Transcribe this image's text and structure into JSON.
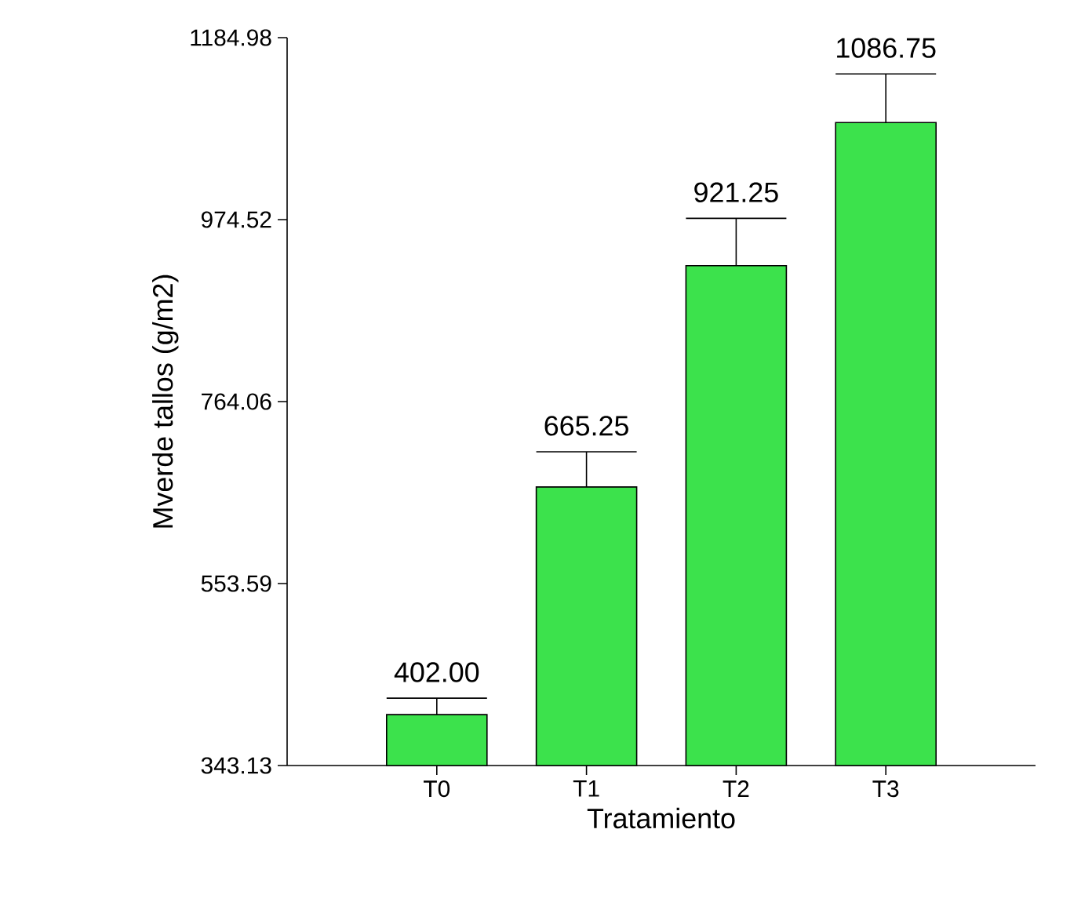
{
  "chart_data": {
    "type": "bar",
    "xlabel": "Tratamiento",
    "ylabel": "Mverde tallos (g/m2)",
    "categories": [
      "T0",
      "T1",
      "T2",
      "T3"
    ],
    "values": [
      402.0,
      665.25,
      921.25,
      1086.75
    ],
    "errors": [
      [
        402.0,
        421
      ],
      [
        665.25,
        706
      ],
      [
        921.25,
        976
      ],
      [
        1086.75,
        1143
      ]
    ],
    "value_labels": [
      "402.00",
      "665.25",
      "921.25",
      "1086.75"
    ],
    "color": "#3ce24c",
    "ylim": [
      343.13,
      1184.98
    ],
    "yticks": [
      343.13,
      553.59,
      764.06,
      974.52,
      1184.98
    ],
    "grid": false
  }
}
